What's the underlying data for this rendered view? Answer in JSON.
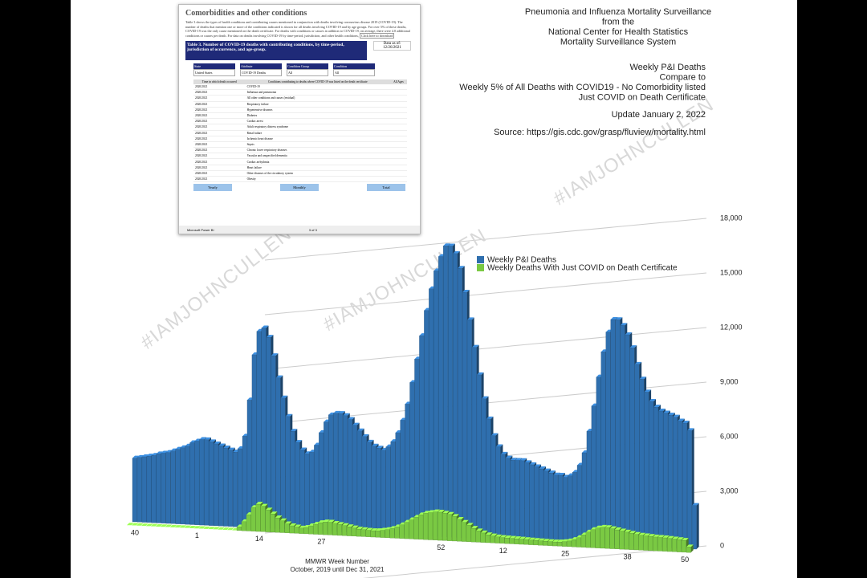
{
  "chart_data": {
    "type": "bar3d",
    "series": [
      {
        "name": "Weekly P&I Deaths",
        "color": "#2f6fae",
        "values": [
          3500,
          3550,
          3600,
          3650,
          3700,
          3800,
          3850,
          3900,
          4000,
          4100,
          4200,
          4300,
          4500,
          4600,
          4700,
          4700,
          4600,
          4500,
          4400,
          4300,
          4200,
          4100,
          4300,
          5000,
          7000,
          9500,
          10800,
          11000,
          10500,
          9500,
          8300,
          7200,
          6200,
          5400,
          4800,
          4400,
          4200,
          4300,
          4700,
          5400,
          6000,
          6400,
          6500,
          6500,
          6400,
          6200,
          5900,
          5600,
          5300,
          5000,
          4800,
          4700,
          4600,
          4800,
          5100,
          5600,
          6300,
          7200,
          8400,
          9700,
          11000,
          12400,
          13600,
          14600,
          15400,
          16000,
          16000,
          15600,
          14800,
          13500,
          12000,
          10500,
          9000,
          7700,
          6600,
          5700,
          5100,
          4700,
          4500,
          4400,
          4400,
          4400,
          4300,
          4200,
          4100,
          4000,
          3900,
          3800,
          3700,
          3700,
          3600,
          3700,
          3900,
          4300,
          5000,
          6200,
          7600,
          9200,
          10600,
          11700,
          12400,
          12400,
          12100,
          11600,
          10900,
          10000,
          9200,
          8500,
          8000,
          7700,
          7500,
          7400,
          7300,
          7200,
          7000,
          6900,
          6500,
          2400
        ]
      },
      {
        "name": "Weekly Deaths With Just COVID on Death Certificate",
        "color": "#7ac943",
        "values": [
          0,
          0,
          0,
          0,
          0,
          0,
          0,
          0,
          0,
          0,
          0,
          0,
          0,
          0,
          0,
          0,
          0,
          0,
          0,
          0,
          0,
          0,
          0,
          200,
          500,
          900,
          1300,
          1500,
          1400,
          1200,
          1000,
          800,
          650,
          500,
          400,
          350,
          300,
          350,
          450,
          550,
          650,
          700,
          700,
          650,
          600,
          550,
          500,
          450,
          400,
          380,
          360,
          350,
          360,
          400,
          450,
          520,
          620,
          750,
          900,
          1050,
          1200,
          1350,
          1450,
          1500,
          1550,
          1550,
          1500,
          1450,
          1350,
          1200,
          1050,
          900,
          750,
          620,
          520,
          430,
          380,
          340,
          320,
          310,
          300,
          290,
          280,
          270,
          260,
          250,
          240,
          230,
          220,
          220,
          230,
          260,
          310,
          400,
          520,
          680,
          850,
          1000,
          1100,
          1150,
          1150,
          1100,
          1050,
          1000,
          950,
          900,
          850,
          820,
          800,
          780,
          760,
          750,
          740,
          720,
          700,
          680,
          650,
          300
        ]
      }
    ],
    "categories": [
      "40",
      null,
      null,
      null,
      null,
      null,
      null,
      null,
      null,
      null,
      null,
      null,
      null,
      "1",
      null,
      null,
      null,
      null,
      null,
      null,
      null,
      null,
      null,
      null,
      null,
      null,
      "14",
      null,
      null,
      null,
      null,
      null,
      null,
      null,
      null,
      null,
      null,
      null,
      null,
      "27",
      null,
      null,
      null,
      null,
      null,
      null,
      null,
      null,
      null,
      null,
      null,
      null,
      null,
      null,
      null,
      null,
      null,
      null,
      null,
      null,
      null,
      null,
      null,
      null,
      "52",
      null,
      null,
      null,
      null,
      null,
      null,
      null,
      null,
      null,
      null,
      null,
      null,
      "12",
      null,
      null,
      null,
      null,
      null,
      null,
      null,
      null,
      null,
      null,
      null,
      null,
      "25",
      null,
      null,
      null,
      null,
      null,
      null,
      null,
      null,
      null,
      null,
      null,
      null,
      "38",
      null,
      null,
      null,
      null,
      null,
      null,
      null,
      null,
      null,
      null,
      null,
      "50",
      null,
      null
    ],
    "ylim": [
      0,
      18000
    ],
    "yticks": [
      0,
      {
        "value": 3000,
        "label": "3,000"
      },
      {
        "value": 6000,
        "label": "6,000"
      },
      {
        "value": 9000,
        "label": "9,000"
      },
      {
        "value": 12000,
        "label": "12,000"
      },
      {
        "value": 15000,
        "label": "15,000"
      },
      {
        "value": 18000,
        "label": "18,000"
      }
    ],
    "grid": true,
    "xlabel": [
      "MMWR Week Number",
      "October, 2019 until Dec 31, 2021"
    ]
  },
  "header": {
    "lines": [
      "Pneumonia and Influenza Mortality Surveillance",
      "from the",
      "National Center for Health Statistics",
      "Mortality Surveillance System"
    ]
  },
  "notes": {
    "lines": [
      "Weekly P&I Deaths",
      "Compare to",
      "Weekly 5% of All Deaths with COVID19 - No Comorbidity listed",
      "Just COVID on Death Certificate"
    ],
    "update": "Update January 2, 2022",
    "source": "Source:  https://gis.cdc.gov/grasp/fluview/mortality.html"
  },
  "watermark": "#IAMJOHNCULLEN",
  "inset": {
    "title": "Comorbidities and other conditions",
    "paragraph": "Table 3 shows the types of health conditions and contributing causes mentioned in conjunction with deaths involving coronavirus disease 2019 (COVID-19). The number of deaths that mention one or more of the conditions indicated is shown for all deaths involving COVID-19 and by age groups. For over 5% of these deaths, COVID-19 was the only cause mentioned on the death certificate. For deaths with conditions or causes in addition to COVID-19, on average, there were 4.0 additional conditions or causes per death. For data on deaths involving COVID-19 by time-period, jurisdiction, and other health conditions,",
    "download": "Click here to download",
    "table_title": "Table 3. Number of COVID-19 deaths with contributing conditions, by time-period, jurisdiction of occurrence, and age-group.",
    "data_as_of": [
      "Data as of:",
      "12/26/2021"
    ],
    "filters": [
      [
        "State",
        "United States"
      ],
      [
        "Attribute",
        "COVID-19 Deaths"
      ],
      [
        "Condition Group",
        "All"
      ],
      [
        "Condition",
        "All"
      ]
    ],
    "columns": [
      "Time in which death occurred",
      "Conditions contributing to deaths where COVID-19 was listed on the death certificate",
      "All Ages"
    ],
    "rows": [
      [
        "2020/2021",
        "COVID-19"
      ],
      [
        "2020/2021",
        "Influenza and pneumonia"
      ],
      [
        "2020/2021",
        "All other conditions and causes (residual)"
      ],
      [
        "2020/2021",
        "Respiratory failure"
      ],
      [
        "2020/2021",
        "Hypertensive diseases"
      ],
      [
        "2020/2021",
        "Diabetes"
      ],
      [
        "2020/2021",
        "Cardiac arrest"
      ],
      [
        "2020/2021",
        "Adult respiratory distress syndrome"
      ],
      [
        "2020/2021",
        "Renal failure"
      ],
      [
        "2020/2021",
        "Ischemic heart disease"
      ],
      [
        "2020/2021",
        "Sepsis"
      ],
      [
        "2020/2021",
        "Chronic lower respiratory diseases"
      ],
      [
        "2020/2021",
        "Vascular and unspecified dementia"
      ],
      [
        "2020/2021",
        "Cardiac arrhythmia"
      ],
      [
        "2020/2021",
        "Heart failure"
      ],
      [
        "2020/2021",
        "Other diseases of the circulatory system"
      ],
      [
        "2020/2021",
        "Obesity"
      ]
    ],
    "buttons": [
      "Yearly",
      "Monthly",
      "Total"
    ],
    "footer": [
      "Microsoft Power BI",
      "3 of 3"
    ]
  }
}
